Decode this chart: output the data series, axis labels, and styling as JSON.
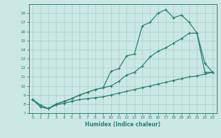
{
  "title": "",
  "xlabel": "Humidex (Indice chaleur)",
  "ylabel": "",
  "background_color": "#cce8e4",
  "grid_color": "#aad4ce",
  "line_color": "#2e7d6e",
  "xlim": [
    -0.5,
    23.5
  ],
  "ylim": [
    7,
    19
  ],
  "xticks": [
    0,
    1,
    2,
    3,
    4,
    5,
    6,
    7,
    8,
    9,
    10,
    11,
    12,
    13,
    14,
    15,
    16,
    17,
    18,
    19,
    20,
    21,
    22,
    23
  ],
  "yticks": [
    7,
    8,
    9,
    10,
    11,
    12,
    13,
    14,
    15,
    16,
    17,
    18
  ],
  "curve1_x": [
    0,
    1,
    2,
    3,
    4,
    5,
    6,
    7,
    8,
    9,
    10,
    11,
    12,
    13,
    14,
    15,
    16,
    17,
    18,
    19,
    20,
    21,
    22,
    23
  ],
  "curve1_y": [
    8.5,
    7.7,
    7.5,
    8.0,
    8.3,
    8.6,
    9.0,
    9.3,
    9.6,
    9.8,
    11.6,
    11.9,
    13.3,
    13.5,
    16.6,
    17.0,
    18.0,
    18.4,
    17.5,
    17.8,
    17.0,
    15.8,
    12.5,
    11.5
  ],
  "curve2_x": [
    0,
    1,
    2,
    3,
    4,
    5,
    6,
    7,
    8,
    9,
    10,
    11,
    12,
    13,
    14,
    15,
    16,
    17,
    18,
    19,
    20,
    21,
    22,
    23
  ],
  "curve2_y": [
    8.5,
    7.7,
    7.5,
    8.0,
    8.3,
    8.6,
    9.0,
    9.3,
    9.6,
    9.8,
    10.0,
    10.5,
    11.2,
    11.5,
    12.2,
    13.2,
    13.8,
    14.2,
    14.7,
    15.2,
    15.8,
    15.8,
    11.5,
    11.5
  ],
  "curve3_x": [
    0,
    1,
    2,
    3,
    4,
    5,
    6,
    7,
    8,
    9,
    10,
    11,
    12,
    13,
    14,
    15,
    16,
    17,
    18,
    19,
    20,
    21,
    22,
    23
  ],
  "curve3_y": [
    8.5,
    7.9,
    7.5,
    7.9,
    8.1,
    8.3,
    8.5,
    8.6,
    8.7,
    8.8,
    9.0,
    9.2,
    9.4,
    9.6,
    9.8,
    10.0,
    10.2,
    10.4,
    10.6,
    10.8,
    11.0,
    11.1,
    11.3,
    11.5
  ]
}
